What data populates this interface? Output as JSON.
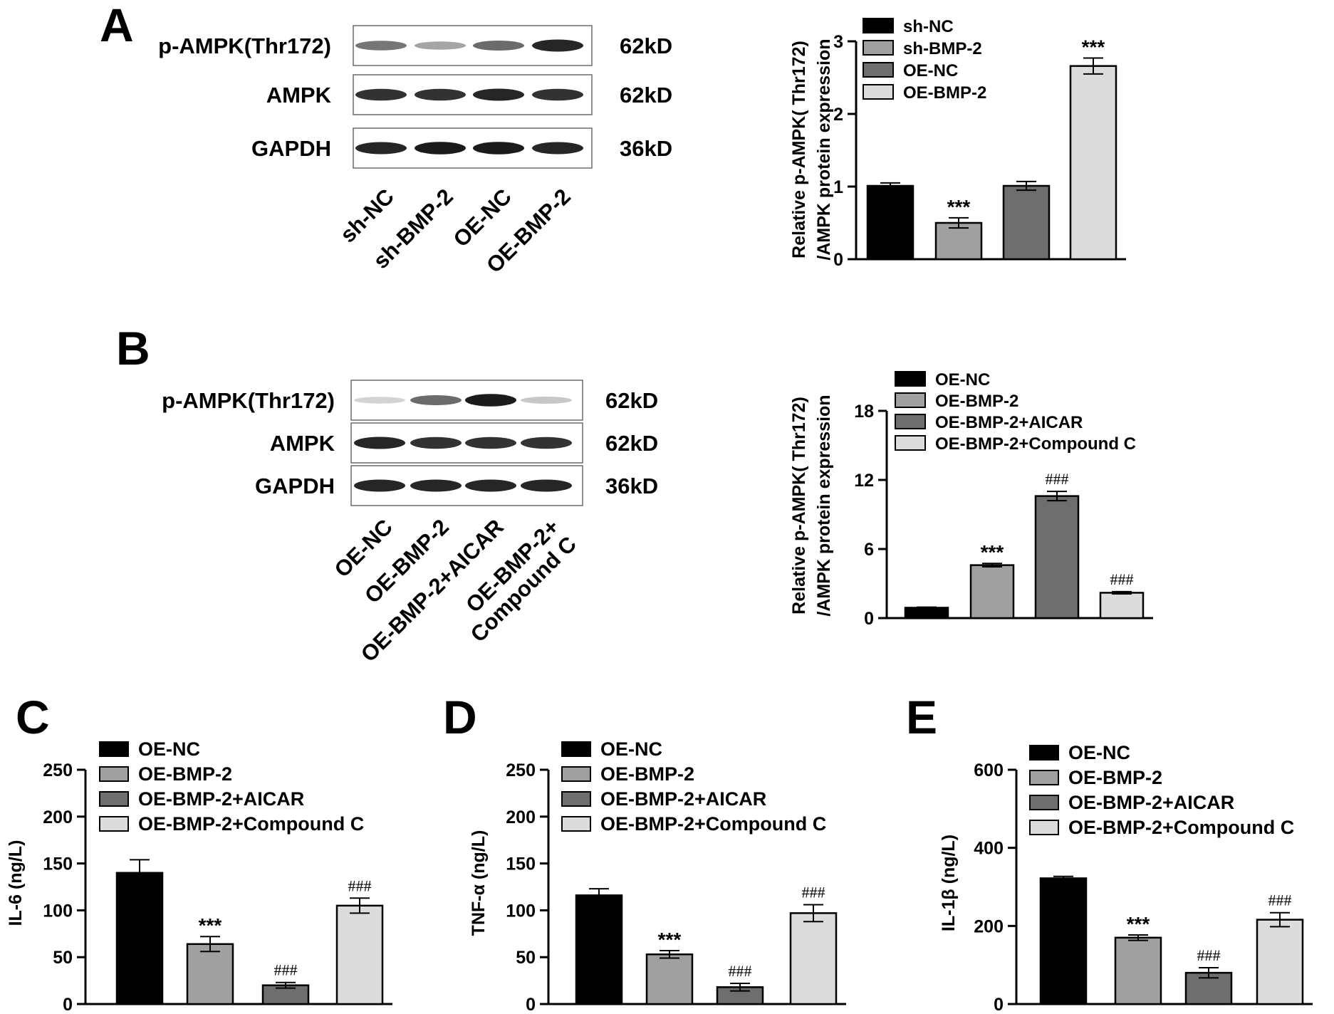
{
  "colors": {
    "series": [
      "#000000",
      "#a0a0a0",
      "#6e6e6e",
      "#dcdcdc"
    ],
    "axis": "#000000"
  },
  "panels": {
    "A": {
      "letter": "A",
      "blot": {
        "rows": [
          {
            "label": "p-AMPK(Thr172)",
            "kd": "62kD",
            "intensities": [
              0.55,
              0.35,
              0.6,
              0.9
            ]
          },
          {
            "label": "AMPK",
            "kd": "62kD",
            "intensities": [
              0.85,
              0.85,
              0.9,
              0.85
            ]
          },
          {
            "label": "GAPDH",
            "kd": "36kD",
            "intensities": [
              0.9,
              0.95,
              0.95,
              0.9
            ]
          }
        ],
        "lanes": [
          "sh-NC",
          "sh-BMP-2",
          "OE-NC",
          "OE-BMP-2"
        ]
      }
    },
    "B": {
      "letter": "B",
      "blot": {
        "rows": [
          {
            "label": "p-AMPK(Thr172)",
            "kd": "62kD",
            "intensities": [
              0.15,
              0.6,
              0.95,
              0.2
            ]
          },
          {
            "label": "AMPK",
            "kd": "62kD",
            "intensities": [
              0.9,
              0.85,
              0.85,
              0.85
            ]
          },
          {
            "label": "GAPDH",
            "kd": "36kD",
            "intensities": [
              0.9,
              0.9,
              0.9,
              0.9
            ]
          }
        ],
        "lanes": [
          "OE-NC",
          "OE-BMP-2",
          "OE-BMP-2+AICAR",
          [
            "OE-BMP-2+",
            "Compound C"
          ]
        ]
      }
    },
    "C": {
      "letter": "C"
    },
    "D": {
      "letter": "D"
    },
    "E": {
      "letter": "E"
    }
  },
  "chart_data": [
    {
      "id": "A",
      "type": "bar",
      "categories": [
        "sh-NC",
        "sh-BMP-2",
        "OE-NC",
        "OE-BMP-2"
      ],
      "values": [
        1.01,
        0.5,
        1.01,
        2.66
      ],
      "errors": [
        0.04,
        0.07,
        0.06,
        0.11
      ],
      "significance": [
        "",
        "***",
        "",
        "***"
      ],
      "legend": [
        "sh-NC",
        "sh-BMP-2",
        "OE-NC",
        "OE-BMP-2"
      ],
      "ylabel_lines": [
        "Relative p-AMPK( Thr172)",
        "/AMPK protein expression"
      ],
      "ylim": [
        0,
        3
      ],
      "yticks": [
        0,
        1,
        2,
        3
      ]
    },
    {
      "id": "B",
      "type": "bar",
      "categories": [
        "OE-NC",
        "OE-BMP-2",
        "OE-BMP-2+AICAR",
        "OE-BMP-2+Compound C"
      ],
      "values": [
        0.9,
        4.6,
        10.6,
        2.2
      ],
      "errors": [
        0.05,
        0.15,
        0.4,
        0.1
      ],
      "significance": [
        "",
        "***",
        "###",
        "###"
      ],
      "legend": [
        "OE-NC",
        "OE-BMP-2",
        "OE-BMP-2+AICAR",
        "OE-BMP-2+Compound C"
      ],
      "ylabel_lines": [
        "Relative p-AMPK( Thr172)",
        "/AMPK protein expression"
      ],
      "ylim": [
        0,
        18
      ],
      "yticks": [
        0,
        6,
        12,
        18
      ]
    },
    {
      "id": "C",
      "type": "bar",
      "categories": [
        "OE-NC",
        "OE-BMP-2",
        "OE-BMP-2+AICAR",
        "OE-BMP-2+Compound C"
      ],
      "values": [
        140,
        64,
        20,
        105
      ],
      "errors": [
        14,
        8,
        3,
        8
      ],
      "significance": [
        "",
        "***",
        "###",
        "###"
      ],
      "legend": [
        "OE-NC",
        "OE-BMP-2",
        "OE-BMP-2+AICAR",
        "OE-BMP-2+Compound C"
      ],
      "ylabel_lines": [
        "IL-6 (ng/L)"
      ],
      "ylim": [
        0,
        250
      ],
      "yticks": [
        0,
        50,
        100,
        150,
        200,
        250
      ]
    },
    {
      "id": "D",
      "type": "bar",
      "categories": [
        "OE-NC",
        "OE-BMP-2",
        "OE-BMP-2+AICAR",
        "OE-BMP-2+Compound C"
      ],
      "values": [
        116,
        53,
        18,
        97
      ],
      "errors": [
        7,
        4,
        4,
        9
      ],
      "significance": [
        "",
        "***",
        "###",
        "###"
      ],
      "legend": [
        "OE-NC",
        "OE-BMP-2",
        "OE-BMP-2+AICAR",
        "OE-BMP-2+Compound C"
      ],
      "ylabel_lines": [
        "TNF-α (ng/L)"
      ],
      "ylim": [
        0,
        250
      ],
      "yticks": [
        0,
        50,
        100,
        150,
        200,
        250
      ]
    },
    {
      "id": "E",
      "type": "bar",
      "categories": [
        "OE-NC",
        "OE-BMP-2",
        "OE-BMP-2+AICAR",
        "OE-BMP-2+Compound C"
      ],
      "values": [
        322,
        170,
        80,
        216
      ],
      "errors": [
        5,
        7,
        13,
        18
      ],
      "significance": [
        "",
        "***",
        "###",
        "###"
      ],
      "legend": [
        "OE-NC",
        "OE-BMP-2",
        "OE-BMP-2+AICAR",
        "OE-BMP-2+Compound C"
      ],
      "ylabel_lines": [
        "IL-1β (ng/L)"
      ],
      "ylim": [
        0,
        600
      ],
      "yticks": [
        0,
        200,
        400,
        600
      ]
    }
  ]
}
